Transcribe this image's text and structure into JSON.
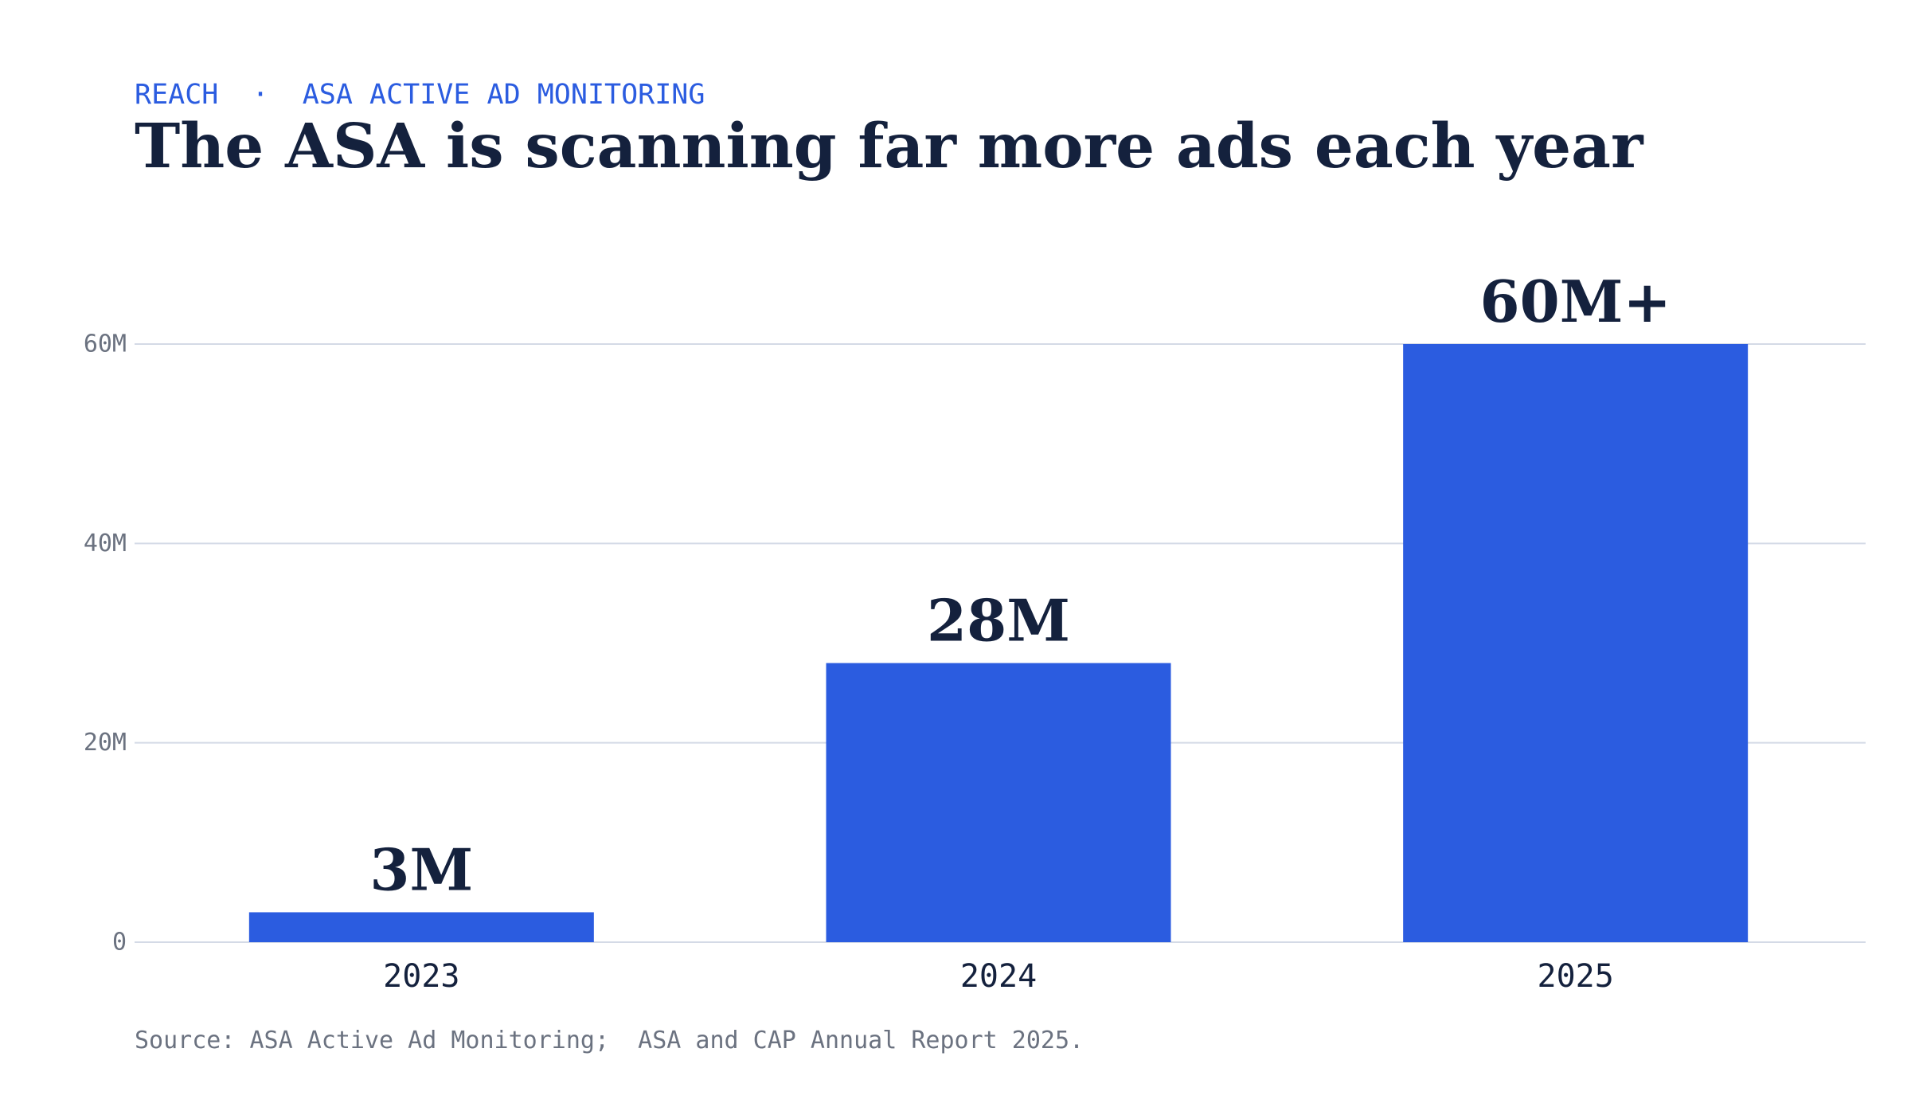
{
  "header": {
    "kicker": "REACH  ·  ASA ACTIVE AD MONITORING",
    "title": "The ASA is scanning far more ads each year"
  },
  "footer": {
    "source": "Source: ASA Active Ad Monitoring;  ASA and CAP Annual Report 2025."
  },
  "chart_data": {
    "type": "bar",
    "title": "The ASA is scanning far more ads each year",
    "subtitle": "REACH  ·  ASA ACTIVE AD MONITORING",
    "categories": [
      "2023",
      "2024",
      "2025"
    ],
    "values": [
      3000000,
      28000000,
      60000000
    ],
    "data_labels": [
      "3M",
      "28M",
      "60M+"
    ],
    "yticks": [
      0,
      20000000,
      40000000,
      60000000
    ],
    "ytick_labels": [
      "0",
      "20M",
      "40M",
      "60M"
    ],
    "ylim": [
      0,
      60000000
    ],
    "xlabel": "",
    "ylabel": "",
    "grid": true,
    "bar_color": "#2b5ce0",
    "gridline_color": "#d4dae6",
    "text_color": "#14213d",
    "tick_color": "#6b7280"
  }
}
